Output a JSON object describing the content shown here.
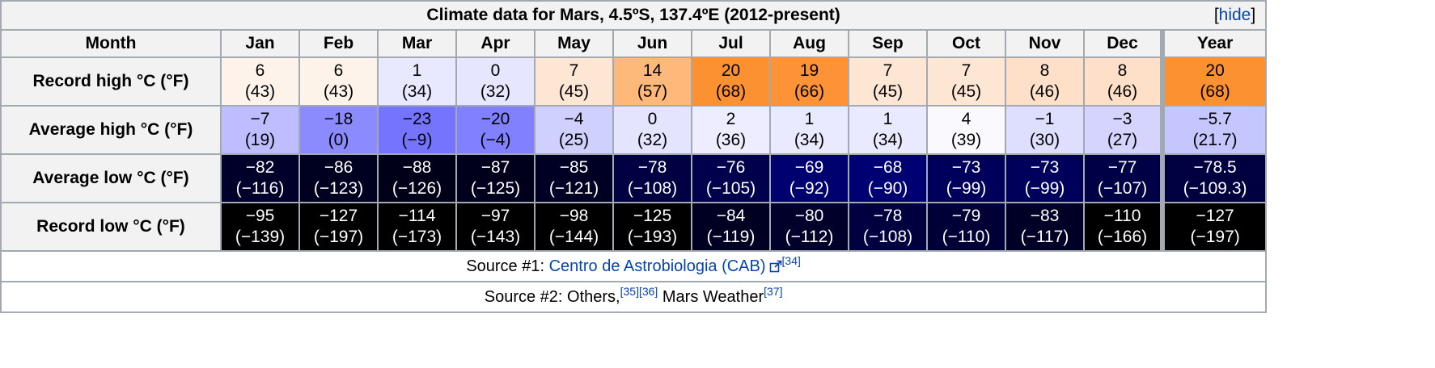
{
  "caption": "Climate data for Mars, 4.5ºS, 137.4ºE (2012-present)",
  "hide_label": "hide",
  "header": {
    "label": "Month",
    "months": [
      "Jan",
      "Feb",
      "Mar",
      "Apr",
      "May",
      "Jun",
      "Jul",
      "Aug",
      "Sep",
      "Oct",
      "Nov",
      "Dec"
    ],
    "year": "Year"
  },
  "rows": [
    {
      "label": "Record high °C (°F)",
      "c": [
        "6",
        "6",
        "1",
        "0",
        "7",
        "14",
        "20",
        "19",
        "7",
        "7",
        "8",
        "8",
        "20"
      ],
      "f": [
        "(43)",
        "(43)",
        "(34)",
        "(32)",
        "(45)",
        "(57)",
        "(68)",
        "(66)",
        "(45)",
        "(45)",
        "(46)",
        "(46)",
        "(68)"
      ],
      "bg": [
        "#fef3ea",
        "#fef3ea",
        "#e8e8ff",
        "#e6e6ff",
        "#fee6d4",
        "#fdb87a",
        "#fc9131",
        "#fd9336",
        "#fee6d4",
        "#fee6d4",
        "#fee0c8",
        "#fee0c8",
        "#fc9131"
      ],
      "fg": [
        "#000000",
        "#000000",
        "#000000",
        "#000000",
        "#000000",
        "#000000",
        "#000000",
        "#000000",
        "#000000",
        "#000000",
        "#000000",
        "#000000",
        "#000000"
      ]
    },
    {
      "label": "Average high °C (°F)",
      "c": [
        "−7",
        "−18",
        "−23",
        "−20",
        "−4",
        "0",
        "2",
        "1",
        "1",
        "4",
        "−1",
        "−3",
        "−5.7"
      ],
      "f": [
        "(19)",
        "(0)",
        "(−9)",
        "(−4)",
        "(25)",
        "(32)",
        "(36)",
        "(34)",
        "(34)",
        "(39)",
        "(30)",
        "(27)",
        "(21.7)"
      ],
      "bg": [
        "#bdbdff",
        "#8b8bff",
        "#7474ff",
        "#8181ff",
        "#d0d0ff",
        "#e4e4ff",
        "#ededff",
        "#e9e9ff",
        "#e9e9ff",
        "#fafafe",
        "#dedeff",
        "#d4d4ff",
        "#c6c6ff"
      ],
      "fg": [
        "#000000",
        "#000000",
        "#000000",
        "#000000",
        "#000000",
        "#000000",
        "#000000",
        "#000000",
        "#000000",
        "#000000",
        "#000000",
        "#000000",
        "#000000"
      ]
    },
    {
      "label": "Average low °C (°F)",
      "c": [
        "−82",
        "−86",
        "−88",
        "−87",
        "−85",
        "−78",
        "−76",
        "−69",
        "−68",
        "−73",
        "−73",
        "−77",
        "−78.5"
      ],
      "f": [
        "(−116)",
        "(−123)",
        "(−126)",
        "(−125)",
        "(−121)",
        "(−108)",
        "(−105)",
        "(−92)",
        "(−90)",
        "(−99)",
        "(−99)",
        "(−107)",
        "(−109.3)"
      ],
      "bg": [
        "#00002a",
        "#000020",
        "#000018",
        "#00001c",
        "#000024",
        "#000042",
        "#00004c",
        "#00006e",
        "#000073",
        "#00005c",
        "#00005c",
        "#000046",
        "#000040"
      ],
      "fg": [
        "#ffffff",
        "#ffffff",
        "#ffffff",
        "#ffffff",
        "#ffffff",
        "#ffffff",
        "#ffffff",
        "#ffffff",
        "#ffffff",
        "#ffffff",
        "#ffffff",
        "#ffffff",
        "#ffffff"
      ]
    },
    {
      "label": "Record low °C (°F)",
      "c": [
        "−95",
        "−127",
        "−114",
        "−97",
        "−98",
        "−125",
        "−84",
        "−80",
        "−78",
        "−79",
        "−83",
        "−110",
        "−127"
      ],
      "f": [
        "(−139)",
        "(−197)",
        "(−173)",
        "(−143)",
        "(−144)",
        "(−193)",
        "(−119)",
        "(−112)",
        "(−108)",
        "(−110)",
        "(−117)",
        "(−166)",
        "(−197)"
      ],
      "bg": [
        "#000000",
        "#000000",
        "#000000",
        "#000000",
        "#000000",
        "#000000",
        "#000022",
        "#00002a",
        "#000040",
        "#000036",
        "#000026",
        "#000000",
        "#000000"
      ],
      "fg": [
        "#ffffff",
        "#ffffff",
        "#ffffff",
        "#ffffff",
        "#ffffff",
        "#ffffff",
        "#ffffff",
        "#ffffff",
        "#ffffff",
        "#ffffff",
        "#ffffff",
        "#ffffff",
        "#ffffff"
      ]
    }
  ],
  "source1": {
    "prefix": "Source #1: ",
    "link": "Centro de Astrobiologia (CAB)",
    "ref": "[34]"
  },
  "source2": {
    "prefix": "Source #2: Others,",
    "ref1": "[35]",
    "ref2": "[36]",
    "middle": " Mars Weather",
    "ref3": "[37]"
  },
  "colors": {
    "link": "#0645ad",
    "border": "#a2a9b1",
    "header_bg": "#f2f2f2"
  }
}
